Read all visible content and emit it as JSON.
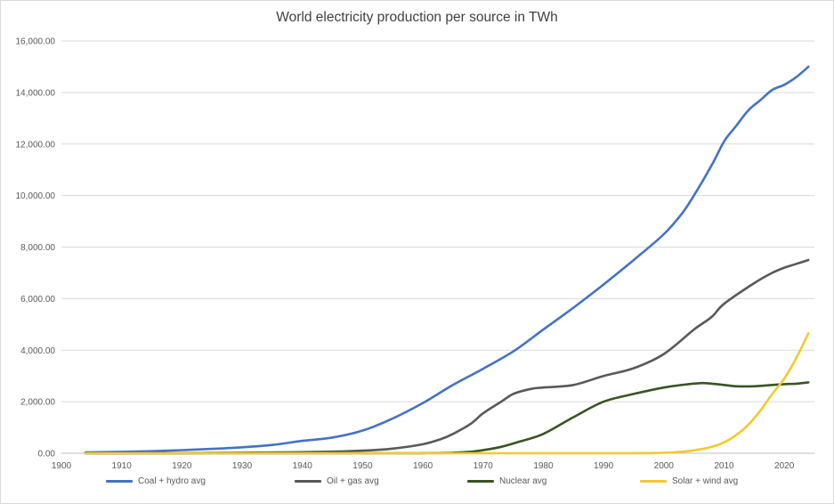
{
  "chart_data": {
    "type": "line",
    "title": "World electricity production per source in TWh",
    "xlabel": "",
    "ylabel": "",
    "xlim": [
      1900,
      2025
    ],
    "ylim": [
      0,
      16000
    ],
    "x_ticks": [
      "1900",
      "1910",
      "1920",
      "1930",
      "1940",
      "1950",
      "1960",
      "1970",
      "1980",
      "1990",
      "2000",
      "2010",
      "2020"
    ],
    "y_ticks": [
      "0.00",
      "2,000.00",
      "4,000.00",
      "6,000.00",
      "8,000.00",
      "10,000.00",
      "12,000.00",
      "14,000.00",
      "16,000.00"
    ],
    "grid": "horizontal",
    "legend_position": "bottom",
    "series": [
      {
        "name": "Coal + hydro avg",
        "color": "#4472c4",
        "points": [
          [
            1904,
            30
          ],
          [
            1910,
            55
          ],
          [
            1915,
            80
          ],
          [
            1920,
            120
          ],
          [
            1925,
            170
          ],
          [
            1930,
            230
          ],
          [
            1935,
            320
          ],
          [
            1940,
            480
          ],
          [
            1945,
            610
          ],
          [
            1950,
            880
          ],
          [
            1955,
            1350
          ],
          [
            1960,
            1950
          ],
          [
            1965,
            2650
          ],
          [
            1970,
            3280
          ],
          [
            1975,
            3950
          ],
          [
            1980,
            4800
          ],
          [
            1985,
            5650
          ],
          [
            1990,
            6550
          ],
          [
            1995,
            7500
          ],
          [
            2000,
            8500
          ],
          [
            2003,
            9300
          ],
          [
            2005,
            10000
          ],
          [
            2008,
            11200
          ],
          [
            2010,
            12100
          ],
          [
            2012,
            12700
          ],
          [
            2014,
            13300
          ],
          [
            2016,
            13700
          ],
          [
            2018,
            14100
          ],
          [
            2020,
            14300
          ],
          [
            2022,
            14600
          ],
          [
            2024,
            15000
          ]
        ]
      },
      {
        "name": "Oil + gas avg",
        "color": "#595959",
        "points": [
          [
            1904,
            0
          ],
          [
            1920,
            5
          ],
          [
            1930,
            20
          ],
          [
            1940,
            40
          ],
          [
            1950,
            100
          ],
          [
            1955,
            180
          ],
          [
            1960,
            350
          ],
          [
            1963,
            550
          ],
          [
            1965,
            750
          ],
          [
            1968,
            1150
          ],
          [
            1970,
            1550
          ],
          [
            1973,
            2000
          ],
          [
            1975,
            2300
          ],
          [
            1978,
            2500
          ],
          [
            1980,
            2550
          ],
          [
            1985,
            2650
          ],
          [
            1990,
            3000
          ],
          [
            1995,
            3300
          ],
          [
            2000,
            3850
          ],
          [
            2005,
            4800
          ],
          [
            2008,
            5300
          ],
          [
            2010,
            5800
          ],
          [
            2015,
            6600
          ],
          [
            2018,
            7000
          ],
          [
            2020,
            7200
          ],
          [
            2022,
            7350
          ],
          [
            2024,
            7500
          ]
        ]
      },
      {
        "name": "Nuclear avg",
        "color": "#375623",
        "points": [
          [
            1904,
            0
          ],
          [
            1955,
            0
          ],
          [
            1960,
            5
          ],
          [
            1965,
            20
          ],
          [
            1968,
            60
          ],
          [
            1970,
            120
          ],
          [
            1973,
            250
          ],
          [
            1976,
            450
          ],
          [
            1980,
            750
          ],
          [
            1985,
            1400
          ],
          [
            1990,
            2000
          ],
          [
            1995,
            2300
          ],
          [
            2000,
            2550
          ],
          [
            2003,
            2650
          ],
          [
            2006,
            2720
          ],
          [
            2008,
            2700
          ],
          [
            2010,
            2650
          ],
          [
            2012,
            2600
          ],
          [
            2015,
            2600
          ],
          [
            2018,
            2650
          ],
          [
            2020,
            2680
          ],
          [
            2022,
            2700
          ],
          [
            2024,
            2750
          ]
        ]
      },
      {
        "name": "Solar + wind avg",
        "color": "#f4c92e",
        "points": [
          [
            1904,
            0
          ],
          [
            1990,
            0
          ],
          [
            1995,
            5
          ],
          [
            2000,
            20
          ],
          [
            2003,
            60
          ],
          [
            2005,
            110
          ],
          [
            2008,
            250
          ],
          [
            2010,
            420
          ],
          [
            2012,
            700
          ],
          [
            2014,
            1100
          ],
          [
            2016,
            1650
          ],
          [
            2018,
            2300
          ],
          [
            2020,
            2900
          ],
          [
            2022,
            3700
          ],
          [
            2024,
            4650
          ]
        ]
      }
    ]
  }
}
